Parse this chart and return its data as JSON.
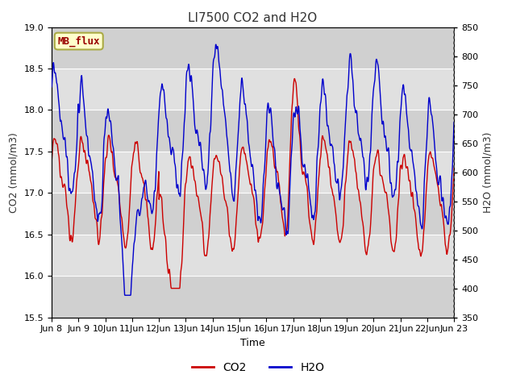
{
  "title": "LI7500 CO2 and H2O",
  "xlabel": "Time",
  "ylabel_left": "CO2 (mmol/m3)",
  "ylabel_right": "H2O (mmol/m3)",
  "ylim_left": [
    15.5,
    19.0
  ],
  "ylim_right": [
    350,
    850
  ],
  "legend_label": "MB_flux",
  "legend_box_color": "#ffffcc",
  "legend_box_edge": "#aaaa44",
  "legend_text_color": "#990000",
  "co2_color": "#cc0000",
  "h2o_color": "#0000cc",
  "background_color": "#ffffff",
  "band_colors": [
    "#d0d0d0",
    "#e0e0e0"
  ],
  "band_edges": [
    15.5,
    16.0,
    16.5,
    17.0,
    17.5,
    18.0,
    18.5,
    19.0
  ],
  "title_fontsize": 11,
  "axis_label_fontsize": 9,
  "tick_fontsize": 8,
  "yticks_left": [
    15.5,
    16.0,
    16.5,
    17.0,
    17.5,
    18.0,
    18.5,
    19.0
  ],
  "yticks_right": [
    350,
    400,
    450,
    500,
    550,
    600,
    650,
    700,
    750,
    800,
    850
  ],
  "tick_days": [
    8,
    9,
    10,
    11,
    12,
    13,
    14,
    15,
    16,
    17,
    18,
    19,
    20,
    21,
    22,
    23
  ],
  "n_points": 1500
}
